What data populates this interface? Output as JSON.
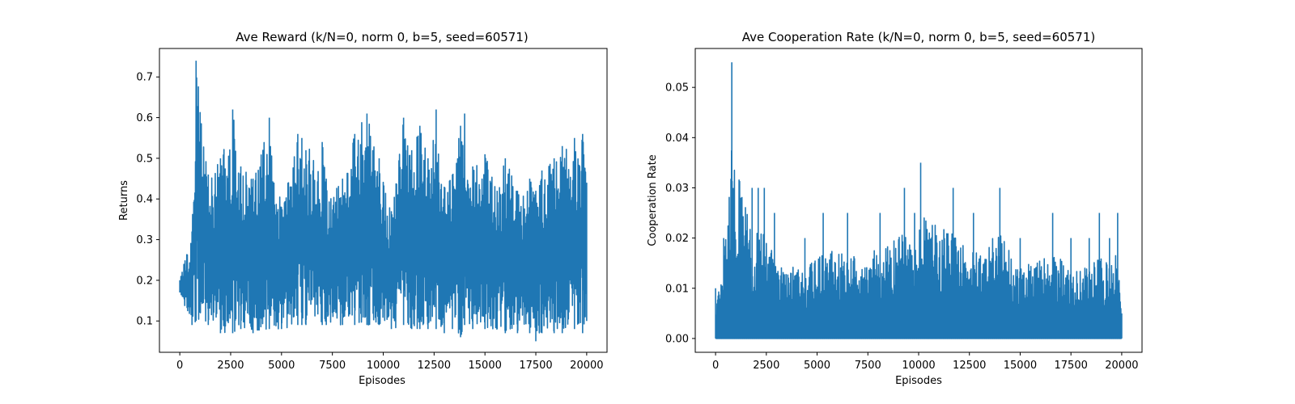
{
  "chart_data": [
    {
      "type": "line",
      "title": "Ave Reward (k/N=0, norm 0, b=5, seed=60571)",
      "xlabel": "Episodes",
      "ylabel": "Returns",
      "xlim": [
        -1000,
        21000
      ],
      "ylim": [
        0.023,
        0.77
      ],
      "xticks": [
        0,
        2500,
        5000,
        7500,
        10000,
        12500,
        15000,
        17500,
        20000
      ],
      "yticks": [
        0.1,
        0.2,
        0.3,
        0.4,
        0.5,
        0.6,
        0.7
      ],
      "ytick_format": 1,
      "grid": false,
      "color": "#1f77b4",
      "series": [
        {
          "x": [
            0,
            600,
            800,
            1400,
            2000,
            2600,
            3000,
            3600,
            4400,
            5000,
            5800,
            6000,
            6200,
            7000,
            7200,
            8000,
            8600,
            9200,
            9800,
            10400,
            11000,
            11400,
            11800,
            12200,
            12600,
            13000,
            13400,
            13800,
            14000,
            14400,
            15000,
            15600,
            16000,
            16600,
            17200,
            17500,
            17800,
            18400,
            18800,
            19400,
            19800,
            20000
          ],
          "y": [
            0.2,
            0.32,
            0.74,
            0.46,
            0.5,
            0.62,
            0.48,
            0.45,
            0.6,
            0.38,
            0.56,
            0.55,
            0.52,
            0.54,
            0.45,
            0.45,
            0.56,
            0.61,
            0.5,
            0.37,
            0.6,
            0.52,
            0.58,
            0.5,
            0.62,
            0.43,
            0.46,
            0.58,
            0.61,
            0.48,
            0.51,
            0.42,
            0.5,
            0.42,
            0.45,
            0.42,
            0.47,
            0.5,
            0.53,
            0.55,
            0.56,
            0.44
          ],
          "y_min": [
            0.17,
            0.09,
            0.1,
            0.09,
            0.07,
            0.07,
            0.08,
            0.07,
            0.08,
            0.08,
            0.09,
            0.09,
            0.09,
            0.09,
            0.09,
            0.09,
            0.09,
            0.09,
            0.09,
            0.08,
            0.09,
            0.08,
            0.08,
            0.08,
            0.08,
            0.07,
            0.08,
            0.06,
            0.09,
            0.08,
            0.08,
            0.08,
            0.07,
            0.07,
            0.07,
            0.05,
            0.07,
            0.07,
            0.07,
            0.08,
            0.07,
            0.1
          ]
        }
      ]
    },
    {
      "type": "line",
      "title": "Ave Cooperation Rate (k/N=0, norm 0, b=5, seed=60571)",
      "xlabel": "Episodes",
      "ylabel": "Cooperation Rate",
      "xlim": [
        -1000,
        21000
      ],
      "ylim": [
        -0.00275,
        0.05775
      ],
      "xticks": [
        0,
        2500,
        5000,
        7500,
        10000,
        12500,
        15000,
        17500,
        20000
      ],
      "yticks": [
        0.0,
        0.01,
        0.02,
        0.03,
        0.04,
        0.05
      ],
      "ytick_format": 2,
      "grid": false,
      "color": "#1f77b4",
      "series": [
        {
          "x": [
            0,
            400,
            800,
            1800,
            2100,
            2400,
            2900,
            4400,
            5300,
            6500,
            8100,
            9300,
            9800,
            10100,
            11700,
            12700,
            14000,
            15000,
            16600,
            17500,
            18400,
            18900,
            19400,
            19800,
            20000
          ],
          "y": [
            0.01,
            0.02,
            0.055,
            0.03,
            0.03,
            0.03,
            0.025,
            0.02,
            0.025,
            0.025,
            0.025,
            0.03,
            0.025,
            0.035,
            0.03,
            0.025,
            0.03,
            0.02,
            0.025,
            0.02,
            0.02,
            0.025,
            0.02,
            0.025,
            0.005
          ],
          "y_min": [
            0.0,
            0.0,
            0.0,
            0.0,
            0.0,
            0.0,
            0.0,
            0.0,
            0.0,
            0.0,
            0.0,
            0.0,
            0.0,
            0.0,
            0.0,
            0.0,
            0.0,
            0.0,
            0.0,
            0.0,
            0.0,
            0.0,
            0.0,
            0.0,
            0.0
          ]
        }
      ]
    }
  ]
}
